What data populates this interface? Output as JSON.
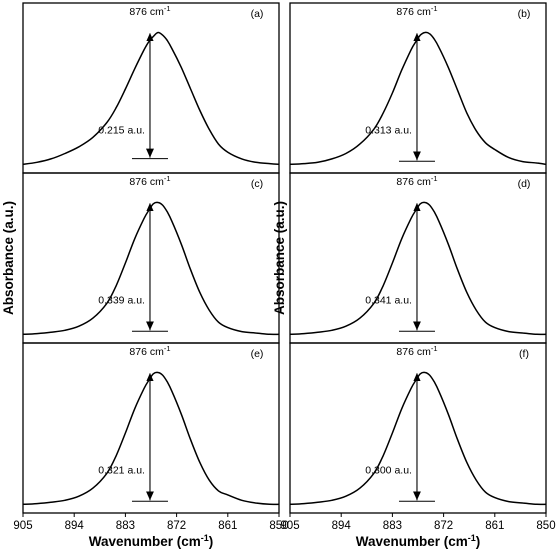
{
  "chart_data": {
    "type": "line",
    "layout": "3x2 grid of stacked panels sharing axes",
    "xlabel": "Wavenumber (cm",
    "xlabel_sup": "-1",
    "xlabel_tail": ")",
    "ylabel": "Absorbance (a.u.)",
    "xlim": [
      905,
      850
    ],
    "x_reversed": true,
    "xticks": [
      905,
      894,
      883,
      872,
      861,
      850
    ],
    "xtick_labels": [
      "905",
      "894",
      "883",
      "872",
      "861",
      "850"
    ],
    "y_ticks_shown": false,
    "panels": [
      {
        "label": "(a)",
        "peak_text": "876 cm",
        "peak_sup": "-1",
        "peak_x": 876,
        "height_label": "0.215 a.u.",
        "ylim": [
          0,
          1.1
        ],
        "baseline_y": 0.04,
        "x": [
          905,
          902,
          899,
          896,
          893,
          890,
          887,
          885,
          883,
          881,
          879,
          878,
          877,
          876,
          875,
          874,
          873,
          871,
          869,
          867,
          865,
          863,
          861,
          858,
          855,
          852,
          850
        ],
        "y": [
          0.02,
          0.035,
          0.06,
          0.1,
          0.15,
          0.22,
          0.33,
          0.44,
          0.58,
          0.73,
          0.87,
          0.93,
          0.97,
          1.0,
          0.98,
          0.94,
          0.88,
          0.74,
          0.58,
          0.42,
          0.28,
          0.17,
          0.11,
          0.06,
          0.035,
          0.025,
          0.02
        ]
      },
      {
        "label": "(b)",
        "peak_text": "876 cm",
        "peak_sup": "-1",
        "peak_x": 876,
        "height_label": "0.313 a.u.",
        "ylim": [
          0,
          1.1
        ],
        "baseline_y": 0.02,
        "x": [
          905,
          902,
          899,
          896,
          893,
          890,
          887,
          885,
          883,
          881,
          879,
          878,
          877,
          876,
          875,
          874,
          873,
          871,
          869,
          867,
          865,
          863,
          861,
          858,
          855,
          852,
          850
        ],
        "y": [
          0.02,
          0.025,
          0.035,
          0.06,
          0.1,
          0.17,
          0.28,
          0.4,
          0.55,
          0.72,
          0.87,
          0.93,
          0.98,
          1.0,
          0.99,
          0.95,
          0.89,
          0.74,
          0.57,
          0.4,
          0.27,
          0.18,
          0.13,
          0.07,
          0.04,
          0.03,
          0.02
        ]
      },
      {
        "label": "(c)",
        "peak_text": "876 cm",
        "peak_sup": "-1",
        "peak_x": 876,
        "height_label": "0.339 a.u.",
        "ylim": [
          0,
          1.1
        ],
        "baseline_y": 0.02,
        "x": [
          905,
          902,
          899,
          896,
          893,
          890,
          887,
          885,
          883,
          881,
          879,
          878,
          877,
          876,
          875,
          874,
          873,
          871,
          869,
          867,
          865,
          863,
          861,
          858,
          855,
          852,
          850
        ],
        "y": [
          0.02,
          0.025,
          0.035,
          0.05,
          0.08,
          0.14,
          0.25,
          0.38,
          0.55,
          0.73,
          0.88,
          0.94,
          0.99,
          1.0,
          0.98,
          0.93,
          0.86,
          0.69,
          0.5,
          0.33,
          0.2,
          0.11,
          0.07,
          0.04,
          0.03,
          0.02,
          0.02
        ]
      },
      {
        "label": "(d)",
        "peak_text": "876 cm",
        "peak_sup": "-1",
        "peak_x": 876,
        "height_label": "0.341 a.u.",
        "ylim": [
          0,
          1.1
        ],
        "baseline_y": 0.02,
        "x": [
          905,
          902,
          899,
          896,
          893,
          890,
          887,
          885,
          883,
          881,
          879,
          878,
          877,
          876,
          875,
          874,
          873,
          871,
          869,
          867,
          865,
          863,
          861,
          858,
          855,
          852,
          850
        ],
        "y": [
          0.02,
          0.025,
          0.035,
          0.05,
          0.08,
          0.14,
          0.25,
          0.38,
          0.55,
          0.73,
          0.88,
          0.94,
          0.99,
          1.0,
          0.98,
          0.93,
          0.86,
          0.69,
          0.5,
          0.33,
          0.2,
          0.11,
          0.07,
          0.04,
          0.03,
          0.02,
          0.02
        ]
      },
      {
        "label": "(e)",
        "peak_text": "876 cm",
        "peak_sup": "-1",
        "peak_x": 876,
        "height_label": "0.321 a.u.",
        "ylim": [
          0,
          1.1
        ],
        "baseline_y": 0.02,
        "x": [
          905,
          902,
          899,
          896,
          893,
          890,
          887,
          885,
          883,
          881,
          879,
          878,
          877,
          876,
          875,
          874,
          873,
          871,
          869,
          867,
          865,
          863,
          861,
          858,
          855,
          852,
          850
        ],
        "y": [
          0.02,
          0.025,
          0.035,
          0.05,
          0.08,
          0.14,
          0.25,
          0.38,
          0.55,
          0.73,
          0.88,
          0.94,
          0.99,
          1.0,
          0.98,
          0.93,
          0.86,
          0.69,
          0.5,
          0.33,
          0.2,
          0.12,
          0.09,
          0.05,
          0.03,
          0.02,
          0.02
        ]
      },
      {
        "label": "(f)",
        "peak_text": "876 cm",
        "peak_sup": "-1",
        "peak_x": 876,
        "height_label": "0.300 a.u.",
        "ylim": [
          0,
          1.1
        ],
        "baseline_y": 0.02,
        "x": [
          905,
          902,
          899,
          896,
          893,
          890,
          887,
          885,
          883,
          881,
          879,
          878,
          877,
          876,
          875,
          874,
          873,
          871,
          869,
          867,
          865,
          863,
          861,
          858,
          855,
          852,
          850
        ],
        "y": [
          0.02,
          0.025,
          0.035,
          0.05,
          0.08,
          0.14,
          0.25,
          0.38,
          0.55,
          0.73,
          0.88,
          0.94,
          0.99,
          1.0,
          0.98,
          0.93,
          0.86,
          0.69,
          0.5,
          0.33,
          0.2,
          0.11,
          0.07,
          0.04,
          0.03,
          0.02,
          0.02
        ]
      }
    ]
  }
}
